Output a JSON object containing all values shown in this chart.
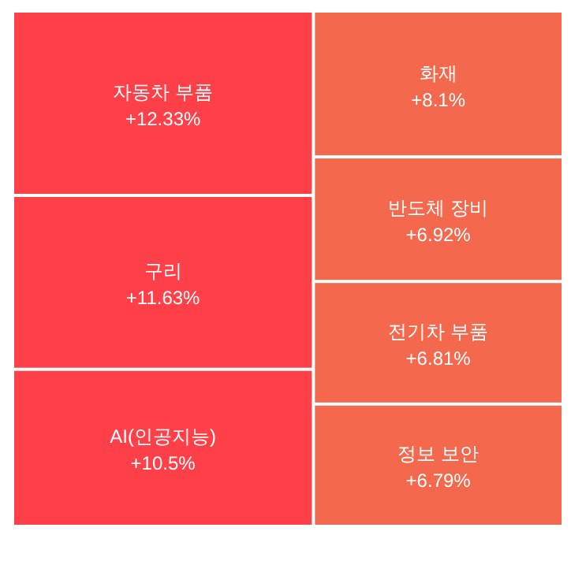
{
  "chart_data": {
    "type": "other",
    "categories": [
      "자동차 부품",
      "구리",
      "AI(인공지능)",
      "화재",
      "반도체 장비",
      "전기차 부품",
      "정보 보안"
    ],
    "values": [
      12.33,
      11.63,
      10.5,
      8.1,
      6.92,
      6.81,
      6.79
    ],
    "value_labels": [
      "+12.33%",
      "+11.63%",
      "+10.5%",
      "+8.1%",
      "+6.92%",
      "+6.81%",
      "+6.79%"
    ],
    "colors": [
      "#ff4048",
      "#ff4048",
      "#ff4048",
      "#f4694e",
      "#f4694e",
      "#f4694e",
      "#f4694e"
    ]
  }
}
